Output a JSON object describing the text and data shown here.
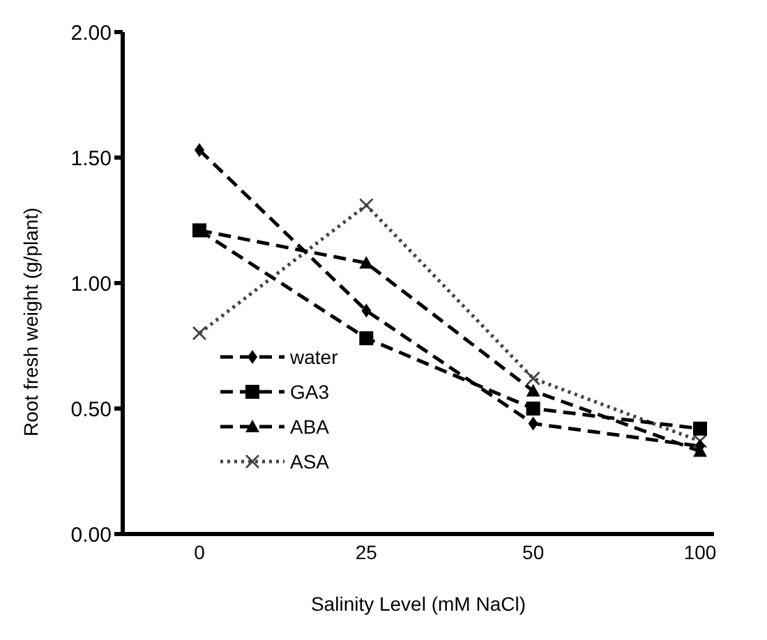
{
  "chart_data": {
    "type": "line",
    "xlabel": "Salinity Level  (mM NaCl)",
    "ylabel": "Root fresh weight (g/plant)",
    "categories": [
      "0",
      "25",
      "50",
      "100"
    ],
    "series": [
      {
        "name": "water",
        "color": "#000000",
        "marker": "diamond",
        "line_style": "dashed",
        "values": [
          1.53,
          0.89,
          0.44,
          0.35
        ]
      },
      {
        "name": "GA3",
        "color": "#000000",
        "marker": "square",
        "line_style": "dashed",
        "values": [
          1.21,
          0.78,
          0.5,
          0.42
        ]
      },
      {
        "name": "ABA",
        "color": "#000000",
        "marker": "triangle",
        "line_style": "dashed",
        "values": [
          1.21,
          1.08,
          0.57,
          0.33
        ]
      },
      {
        "name": "ASA",
        "color": "#444444",
        "marker": "cross",
        "line_style": "dotted",
        "values": [
          0.8,
          1.31,
          0.62,
          0.37
        ]
      }
    ],
    "ylim": [
      0,
      2
    ],
    "yticks": [
      {
        "value": 0,
        "label": "0.00"
      },
      {
        "value": 0.5,
        "label": "0.50"
      },
      {
        "value": 1,
        "label": "1.00"
      },
      {
        "value": 1.5,
        "label": "1.50"
      },
      {
        "value": 2,
        "label": "2.00"
      }
    ],
    "grid": false,
    "legend": "bottom left"
  }
}
